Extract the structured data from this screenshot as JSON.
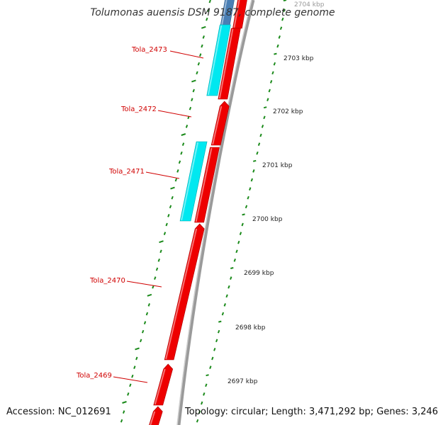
{
  "title": "Tolumonas auensis DSM 9187, complete genome",
  "footer": {
    "accession": "Accession: NC_012691",
    "summary": "Topology: circular; Length: 3,471,292 bp; Genes: 3,246"
  },
  "colors": {
    "forward_gene": "#ee0000",
    "reverse_gene": "#00e8f0",
    "other_gene": "#4a7fb5",
    "backbone": "#8a8a8a",
    "ruler": "#1a8a1a",
    "label": "#d00000"
  },
  "genes": [
    {
      "name": "Tola_2473",
      "strand": "reverse"
    },
    {
      "name": "Tola_2472",
      "strand": "forward"
    },
    {
      "name": "Tola_2471",
      "strand": "reverse"
    },
    {
      "name": "Tola_2470",
      "strand": "forward"
    },
    {
      "name": "Tola_2469",
      "strand": "forward"
    }
  ],
  "ruler_labels": [
    "2704 kbp",
    "2703 kbp",
    "2702 kbp",
    "2701 kbp",
    "2700 kbp",
    "2699 kbp",
    "2698 kbp",
    "2697 kbp"
  ]
}
